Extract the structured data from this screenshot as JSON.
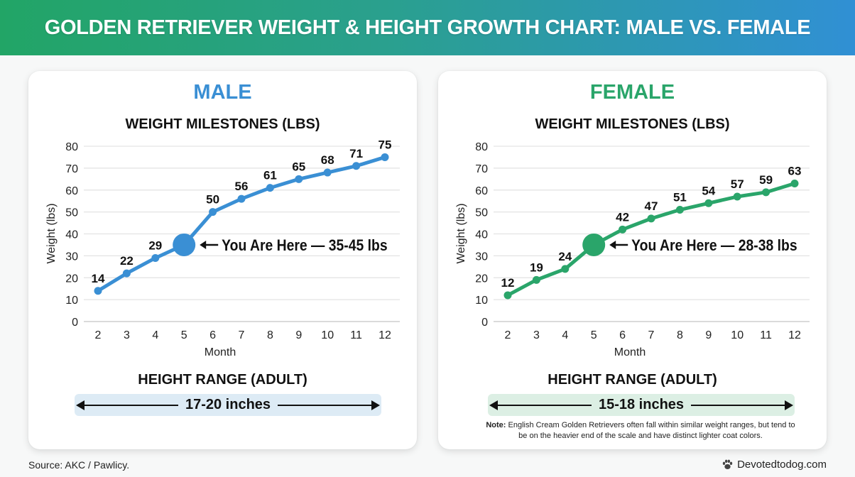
{
  "header": {
    "title": "GOLDEN RETRIEVER WEIGHT & HEIGHT GROWTH CHART: MALE VS. FEMALE"
  },
  "colors": {
    "male": "#3a8fd4",
    "female": "#2aa56a",
    "male_band": "#ddebf5",
    "female_band": "#dcefe4"
  },
  "male": {
    "label": "MALE",
    "chart_title": "WEIGHT MILESTONES (LBS)",
    "you_are_here": "You Are Here — 35-45 lbs",
    "height_title": "HEIGHT RANGE (ADULT)",
    "height_value": "17-20 inches"
  },
  "female": {
    "label": "FEMALE",
    "chart_title": "WEIGHT MILESTONES (LBS)",
    "you_are_here": "You Are Here — 28-38 lbs",
    "height_title": "HEIGHT RANGE (ADULT)",
    "height_value": "15-18 inches",
    "note_label": "Note:",
    "note_text": " English Cream Golden Retrievers often fall within similar weight ranges, but tend to be on the heavier end of the scale and have distinct lighter coat colors."
  },
  "footer": {
    "source": "Source: AKC / Pawlicy.",
    "brand": "Devotedtodog.com",
    "brand_icon": "paw-icon"
  },
  "chart_data": [
    {
      "type": "line",
      "title": "MALE — WEIGHT MILESTONES (LBS)",
      "xlabel": "Month",
      "ylabel": "Weight (lbs)",
      "x": [
        2,
        3,
        4,
        5,
        6,
        7,
        8,
        9,
        10,
        11,
        12
      ],
      "series": [
        {
          "name": "Male",
          "values": [
            14,
            22,
            29,
            35,
            50,
            56,
            61,
            65,
            68,
            71,
            75
          ],
          "labels": [
            "14",
            "22",
            "29",
            "",
            "50",
            "56",
            "61",
            "65",
            "68",
            "71",
            "75"
          ]
        }
      ],
      "yticks": [
        0,
        10,
        20,
        30,
        40,
        50,
        60,
        70,
        80
      ],
      "ylim": [
        0,
        80
      ],
      "grid": true,
      "annotation": {
        "x": 5,
        "y": 35,
        "text": "You Are Here — 35-45 lbs"
      }
    },
    {
      "type": "line",
      "title": "FEMALE — WEIGHT MILESTONES (LBS)",
      "xlabel": "Month",
      "ylabel": "Weight (lbs)",
      "x": [
        2,
        3,
        4,
        5,
        6,
        7,
        8,
        9,
        10,
        11,
        12
      ],
      "series": [
        {
          "name": "Female",
          "values": [
            12,
            19,
            24,
            35,
            42,
            47,
            51,
            54,
            57,
            59,
            63
          ],
          "labels": [
            "12",
            "19",
            "24",
            "",
            "42",
            "47",
            "51",
            "54",
            "57",
            "59",
            "63"
          ]
        }
      ],
      "yticks": [
        0,
        10,
        20,
        30,
        40,
        50,
        60,
        70,
        80
      ],
      "ylim": [
        0,
        80
      ],
      "grid": true,
      "annotation": {
        "x": 5,
        "y": 35,
        "text": "You Are Here — 28-38 lbs"
      }
    }
  ]
}
